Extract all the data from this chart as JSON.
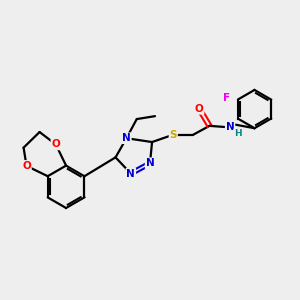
{
  "background_color": "#eeeeee",
  "bond_color": "#000000",
  "atom_colors": {
    "N": "#0000cc",
    "O": "#ff0000",
    "S": "#ccaa00",
    "F": "#ee00ee",
    "H": "#008888",
    "C": "#000000"
  }
}
